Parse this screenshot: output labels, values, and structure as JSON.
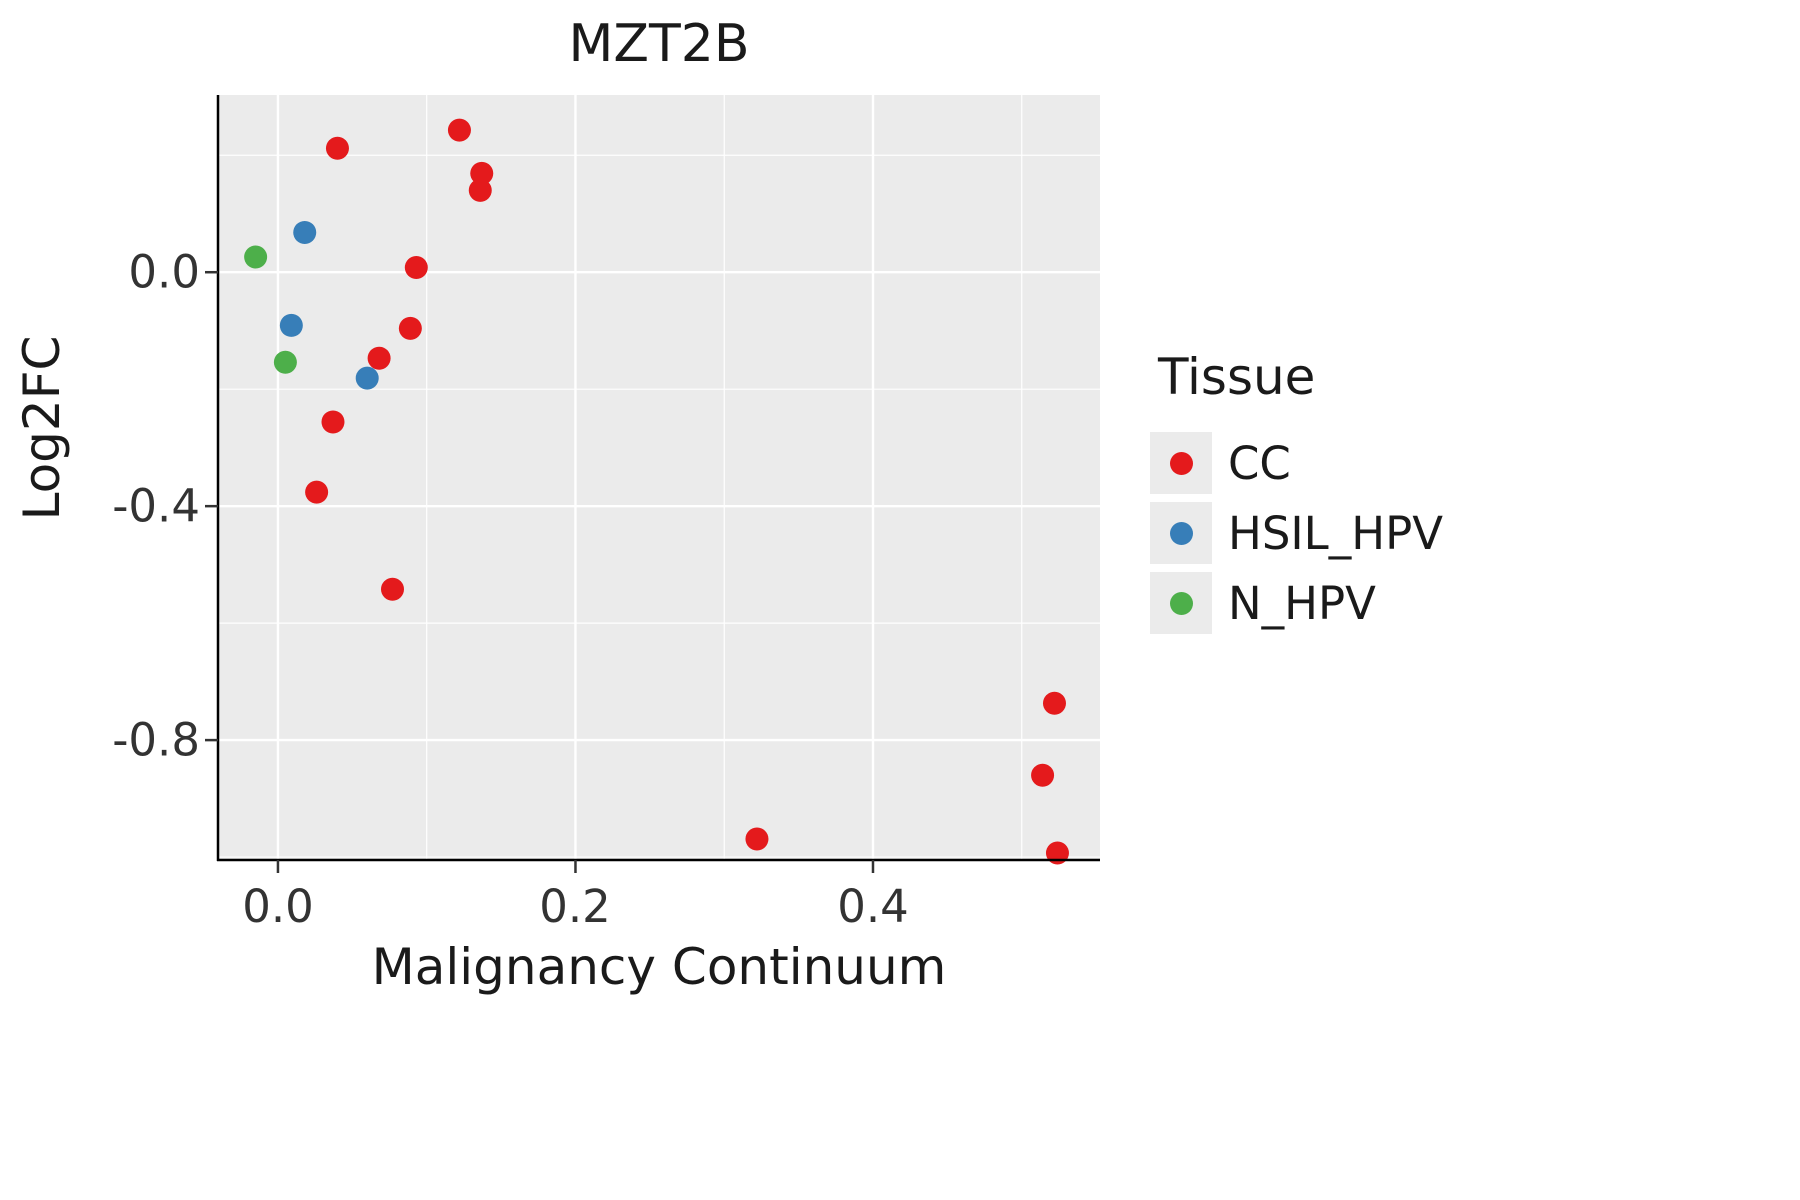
{
  "title": "MZT2B",
  "axes": {
    "x_title": "Malignancy Continuum",
    "y_title": "Log2FC",
    "x_ticks": [
      "0.0",
      "0.2",
      "0.4"
    ],
    "y_ticks": [
      "0.0",
      "-0.4",
      "-0.8"
    ]
  },
  "legend": {
    "title": "Tissue",
    "entries": [
      {
        "label": "CC",
        "color": "#E41A1C"
      },
      {
        "label": "HSIL_HPV",
        "color": "#377EB8"
      },
      {
        "label": "N_HPV",
        "color": "#4DAF4A"
      }
    ]
  },
  "colors": {
    "panel_bg": "#EBEBEB",
    "grid": "#FFFFFF",
    "axis_line": "#000000",
    "tick_mark": "#333333"
  },
  "chart_data": {
    "type": "scatter",
    "title": "MZT2B",
    "xlabel": "Malignancy Continuum",
    "ylabel": "Log2FC",
    "xlim": [
      -0.0403,
      0.5526
    ],
    "ylim": [
      -1.005,
      0.303
    ],
    "x_major_ticks": [
      0.0,
      0.2,
      0.4
    ],
    "x_minor_ticks": [
      0.1,
      0.3,
      0.5
    ],
    "y_major_ticks": [
      0.0,
      -0.4,
      -0.8
    ],
    "y_minor_ticks": [
      0.2,
      -0.2,
      -0.6,
      -1.0
    ],
    "grid": true,
    "legend_position": "right",
    "point_radius": 11.5,
    "series": [
      {
        "name": "CC",
        "color": "#E41A1C",
        "points": [
          [
            0.122,
            0.243
          ],
          [
            0.04,
            0.212
          ],
          [
            0.137,
            0.169
          ],
          [
            0.136,
            0.14
          ],
          [
            0.093,
            0.008
          ],
          [
            0.089,
            -0.096
          ],
          [
            0.068,
            -0.147
          ],
          [
            0.037,
            -0.256
          ],
          [
            0.026,
            -0.376
          ],
          [
            0.077,
            -0.542
          ],
          [
            0.522,
            -0.737
          ],
          [
            0.514,
            -0.86
          ],
          [
            0.322,
            -0.969
          ],
          [
            0.524,
            -0.993
          ]
        ]
      },
      {
        "name": "HSIL_HPV",
        "color": "#377EB8",
        "points": [
          [
            0.018,
            0.068
          ],
          [
            0.009,
            -0.091
          ],
          [
            0.06,
            -0.181
          ]
        ]
      },
      {
        "name": "N_HPV",
        "color": "#4DAF4A",
        "points": [
          [
            -0.015,
            0.026
          ],
          [
            0.005,
            -0.154
          ]
        ]
      }
    ]
  }
}
